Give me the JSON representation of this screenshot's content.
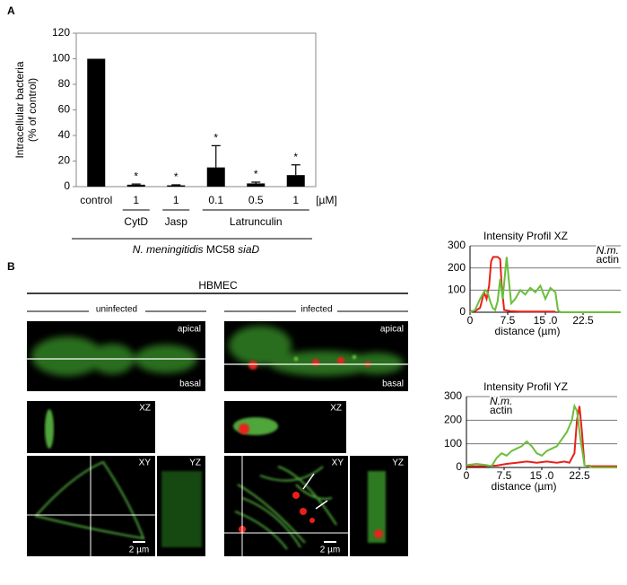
{
  "panel_labels": [
    "A",
    "B"
  ],
  "chart_data": [
    {
      "type": "bar",
      "ylabel": [
        "Intracellular bacteria",
        "(% of control)"
      ],
      "categories": [
        "control",
        "1",
        "1",
        "0.1",
        "0.5",
        "1"
      ],
      "unit": "[µM]",
      "values": [
        100,
        1.5,
        1,
        15,
        2.5,
        9
      ],
      "errors": [
        0,
        0.5,
        0.4,
        17,
        1,
        8
      ],
      "annotations": [
        null,
        "*",
        "*",
        "*",
        "*",
        "*"
      ],
      "groups": [
        "CytD",
        "Jasp",
        "Latrunculin"
      ],
      "strain": [
        "N. meningitidis",
        "MC58",
        "siaD"
      ],
      "color": "#000000",
      "ylim": [
        0,
        120
      ],
      "yticks": [
        0,
        20,
        40,
        60,
        80,
        100,
        120
      ]
    },
    {
      "type": "line",
      "title": "Intensity Profil XZ",
      "xlabel": "distance (µm)",
      "xlim": [
        0,
        30
      ],
      "xticks": [
        0,
        7.5,
        {
          "value": 15,
          "label": "15 .0"
        },
        22.5
      ],
      "ylim": [
        0,
        300
      ],
      "yticks": [
        0,
        100,
        200,
        300
      ],
      "grid": true,
      "legend": "upper right",
      "series": [
        {
          "name": "N.m.",
          "color": "#e8201a",
          "x": [
            0,
            1,
            2,
            2.8,
            3.3,
            3.8,
            4.2,
            4.6,
            5.5,
            6,
            6.3,
            6.8,
            8,
            10,
            12,
            15,
            17
          ],
          "values": [
            5,
            5,
            20,
            90,
            60,
            120,
            230,
            250,
            250,
            240,
            120,
            10,
            5,
            3,
            3,
            3,
            3
          ]
        },
        {
          "name": "actin",
          "color": "#6abf3a",
          "x": [
            0,
            1,
            2,
            3,
            3.5,
            4,
            4.5,
            5,
            5.5,
            6,
            6.5,
            7,
            7.3,
            7.7,
            8.2,
            9,
            10,
            11,
            12,
            13,
            14,
            15,
            16,
            17,
            17.5,
            18,
            20,
            25,
            30
          ],
          "values": [
            0,
            10,
            60,
            100,
            90,
            50,
            20,
            10,
            50,
            150,
            60,
            180,
            250,
            150,
            40,
            60,
            100,
            80,
            110,
            90,
            120,
            60,
            110,
            90,
            10,
            0,
            0,
            0,
            0
          ]
        }
      ]
    },
    {
      "type": "line",
      "title": "Intensity Profil YZ",
      "xlabel": "distance (µm)",
      "xlim": [
        0,
        30
      ],
      "xticks": [
        0,
        7.5,
        {
          "value": 15,
          "label": "15 .0"
        },
        22.5
      ],
      "ylim": [
        0,
        300
      ],
      "yticks": [
        0,
        100,
        200,
        300
      ],
      "grid": true,
      "legend": "upper left",
      "series": [
        {
          "name": "N.m.",
          "color": "#e8201a",
          "x": [
            0,
            3,
            6,
            8,
            10,
            12,
            14,
            16,
            18,
            19.5,
            20.5,
            21.5,
            22,
            22.5,
            23,
            23.5,
            25,
            30
          ],
          "values": [
            5,
            5,
            8,
            15,
            20,
            25,
            20,
            25,
            20,
            25,
            20,
            60,
            200,
            260,
            150,
            10,
            5,
            5
          ]
        },
        {
          "name": "actin",
          "color": "#6abf3a",
          "x": [
            0,
            2,
            4,
            5,
            6,
            7,
            8,
            9,
            10,
            11,
            12,
            13,
            14,
            15,
            16,
            17,
            18,
            19,
            20,
            21,
            21.5,
            22,
            22.7,
            23.5,
            25,
            30
          ],
          "values": [
            10,
            15,
            10,
            5,
            40,
            60,
            50,
            70,
            80,
            90,
            110,
            90,
            60,
            50,
            70,
            80,
            90,
            120,
            150,
            200,
            260,
            240,
            120,
            10,
            0,
            0
          ]
        }
      ]
    }
  ],
  "panel_b": {
    "header": "HBMEC",
    "conditions": [
      "uninfected",
      "infected"
    ],
    "image_labels": {
      "apical": "apical",
      "basal": "basal",
      "xz": "XZ",
      "xy": "XY",
      "yz": "YZ"
    },
    "scale_bar": "2 µm"
  }
}
